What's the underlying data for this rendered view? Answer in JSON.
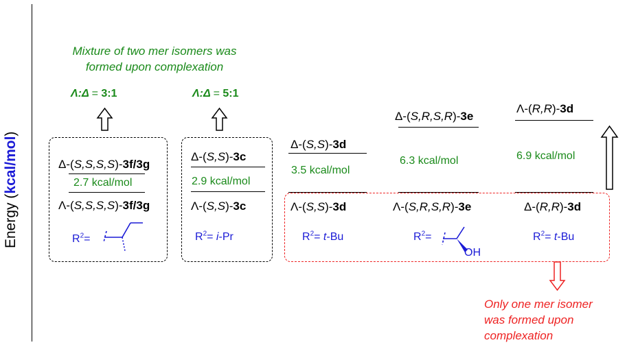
{
  "axis": {
    "label": "Energy",
    "unit": "kcal/mol"
  },
  "colors": {
    "text": "#000000",
    "energy": "#1a8a1a",
    "substituent": "#1a1ad6",
    "note_green": "#1a8a1a",
    "note_red": "#ee2222",
    "unit_blue": "#1a1ad6"
  },
  "notes": {
    "green": [
      "Mixture of two mer isomers was",
      "formed upon complexation"
    ],
    "red": [
      "Only one mer isomer",
      "was formed upon",
      "complexation"
    ]
  },
  "ratios": {
    "left": {
      "sym": "Λ:Δ",
      "eq": "=",
      "value": "3:1"
    },
    "right": {
      "sym": "Λ:Δ",
      "eq": "=",
      "value": "5:1"
    }
  },
  "columns": [
    {
      "upper": {
        "prefix": "Δ-(",
        "config": "S,S,S,S",
        "suffix": ")-",
        "cmpd": "3f/3g"
      },
      "energy": "2.7 kcal/mol",
      "lower": {
        "prefix": "Λ-(",
        "config": "S,S,S,S",
        "suffix": ")-",
        "cmpd": "3f/3g"
      },
      "r2": {
        "label": "R",
        "sup": "2",
        "eq": "= ",
        "text": ""
      }
    },
    {
      "upper": {
        "prefix": "Δ-(",
        "config": "S,S",
        "suffix": ")-",
        "cmpd": "3c"
      },
      "energy": "2.9 kcal/mol",
      "lower": {
        "prefix": "Λ-(",
        "config": "S,S",
        "suffix": ")-",
        "cmpd": "3c"
      },
      "r2": {
        "label": "R",
        "sup": "2",
        "eq": "= ",
        "ital": "i",
        "text": "-Pr"
      }
    },
    {
      "upper": {
        "prefix": "Δ-(",
        "config": "S,S",
        "suffix": ")-",
        "cmpd": "3d"
      },
      "energy": "3.5 kcal/mol",
      "lower": {
        "prefix": "Λ-(",
        "config": "S,S",
        "suffix": ")-",
        "cmpd": "3d"
      },
      "r2": {
        "label": "R",
        "sup": "2",
        "eq": "= ",
        "ital": "t",
        "text": "-Bu"
      }
    },
    {
      "upper": {
        "prefix": "Δ-(",
        "config": "S,R,S,R",
        "suffix": ")-",
        "cmpd": "3e"
      },
      "energy": "6.3 kcal/mol",
      "lower": {
        "prefix": "Λ-(",
        "config": "S,R,S,R",
        "suffix": ")-",
        "cmpd": "3e"
      },
      "r2": {
        "label": "R",
        "sup": "2",
        "eq": "=",
        "oh": "OH"
      }
    },
    {
      "upper": {
        "prefix": "Λ-(",
        "config": "R,R",
        "suffix": ")-",
        "cmpd": "3d"
      },
      "energy": "6.9 kcal/mol",
      "lower": {
        "prefix": "Δ-(",
        "config": "R,R",
        "suffix": ")-",
        "cmpd": "3d"
      },
      "r2": {
        "label": "R",
        "sup": "2",
        "eq": "= ",
        "ital": "t",
        "text": "-Bu"
      }
    }
  ]
}
